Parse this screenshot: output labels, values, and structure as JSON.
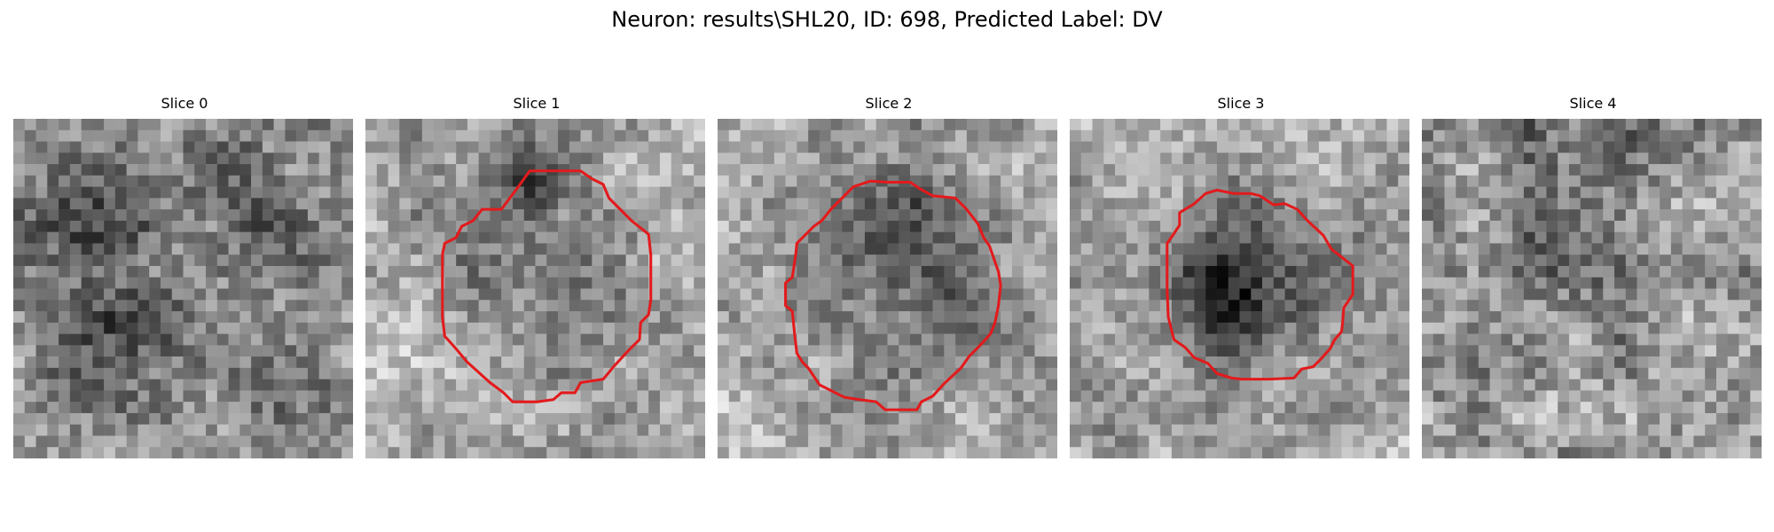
{
  "figure": {
    "title": "Neuron: results\\SHL20, ID: 698, Predicted Label: DV"
  },
  "slices": [
    {
      "title": "Slice 0",
      "has_contour": false
    },
    {
      "title": "Slice 1",
      "has_contour": true
    },
    {
      "title": "Slice 2",
      "has_contour": true
    },
    {
      "title": "Slice 3",
      "has_contour": true
    },
    {
      "title": "Slice 4",
      "has_contour": false
    }
  ],
  "contour_color": "#e31a1c",
  "colormap": "gray"
}
